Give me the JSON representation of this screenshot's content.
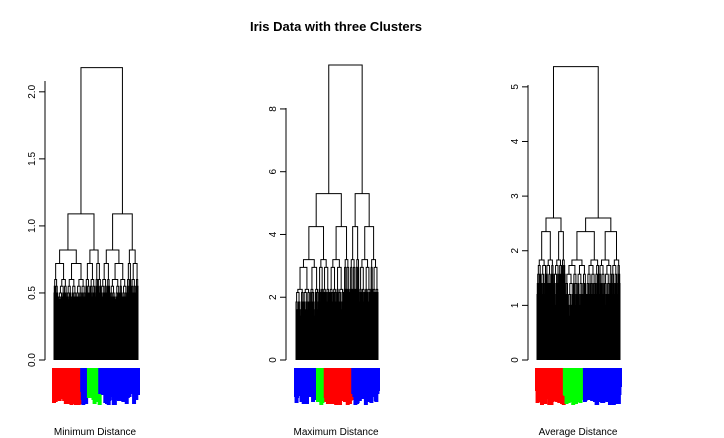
{
  "title": "Iris Data with three Clusters",
  "colors": {
    "setosa": "#ff0000",
    "versicolor": "#00ff00",
    "virginica": "#0000ff"
  },
  "chart_data": [
    {
      "type": "dendrogram",
      "xlabel": "Minimum Distance",
      "ylim": [
        0,
        2.2
      ],
      "yticks": [
        0.0,
        0.5,
        1.0,
        1.5,
        2.0
      ],
      "ytick_labels": [
        "0.0",
        "0.5",
        "1.0",
        "1.5",
        "2.0"
      ],
      "merge_heights": [
        2.18,
        1.09,
        0.82,
        0.72,
        0.6,
        0.55,
        0.5,
        0.47,
        0.45,
        0.4,
        0.35,
        0.3,
        0.25,
        0.2
      ],
      "leaf_groups": [
        {
          "species": "setosa",
          "count": 50
        },
        {
          "species": "virginica",
          "count": 12
        },
        {
          "species": "versicolor",
          "count": 20
        },
        {
          "species": "virginica",
          "count": 68
        }
      ]
    },
    {
      "type": "dendrogram",
      "xlabel": "Maximum Distance",
      "ylim": [
        0,
        9.4
      ],
      "yticks": [
        0,
        2,
        4,
        6,
        8
      ],
      "ytick_labels": [
        "0",
        "2",
        "4",
        "6",
        "8"
      ],
      "merge_heights": [
        9.4,
        5.3,
        4.25,
        3.2,
        2.95,
        2.25,
        2.15,
        1.85,
        1.6,
        1.4,
        1.2,
        1.0,
        0.8
      ],
      "leaf_groups": [
        {
          "species": "virginica",
          "count": 40
        },
        {
          "species": "versicolor",
          "count": 14
        },
        {
          "species": "setosa",
          "count": 50
        },
        {
          "species": "virginica",
          "count": 46
        }
      ]
    },
    {
      "type": "dendrogram",
      "xlabel": "Average Distance",
      "ylim": [
        0,
        5.4
      ],
      "yticks": [
        0,
        1,
        2,
        3,
        4,
        5
      ],
      "ytick_labels": [
        "0",
        "1",
        "2",
        "3",
        "4",
        "5"
      ],
      "merge_heights": [
        5.37,
        2.6,
        2.35,
        1.83,
        1.73,
        1.57,
        1.4,
        1.2,
        1.0,
        0.8,
        0.6,
        0.4
      ],
      "leaf_groups": [
        {
          "species": "setosa",
          "count": 50
        },
        {
          "species": "versicolor",
          "count": 36
        },
        {
          "species": "virginica",
          "count": 64
        }
      ]
    }
  ]
}
